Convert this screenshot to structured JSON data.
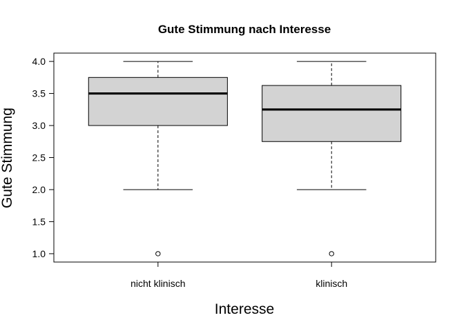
{
  "chart_data": {
    "type": "boxplot",
    "title": "Gute Stimmung nach Interesse",
    "xlabel": "Interesse",
    "ylabel": "Gute Stimmung",
    "categories": [
      "nicht klinisch",
      "klinisch"
    ],
    "ylim": [
      0.87,
      4.13
    ],
    "yticks": [
      1.0,
      1.5,
      2.0,
      2.5,
      3.0,
      3.5,
      4.0
    ],
    "ytick_labels": [
      "1.0",
      "1.5",
      "2.0",
      "2.5",
      "3.0",
      "3.5",
      "4.0"
    ],
    "box_color": "#d3d3d3",
    "boxes": [
      {
        "name": "nicht klinisch",
        "whisker_low": 2.0,
        "q1": 3.0,
        "median": 3.5,
        "q3": 3.75,
        "whisker_high": 4.0,
        "outliers": [
          1.0
        ]
      },
      {
        "name": "klinisch",
        "whisker_low": 2.0,
        "q1": 2.75,
        "median": 3.25,
        "q3": 3.625,
        "whisker_high": 4.0,
        "outliers": [
          1.0
        ]
      }
    ],
    "grid": false,
    "legend": "none"
  }
}
